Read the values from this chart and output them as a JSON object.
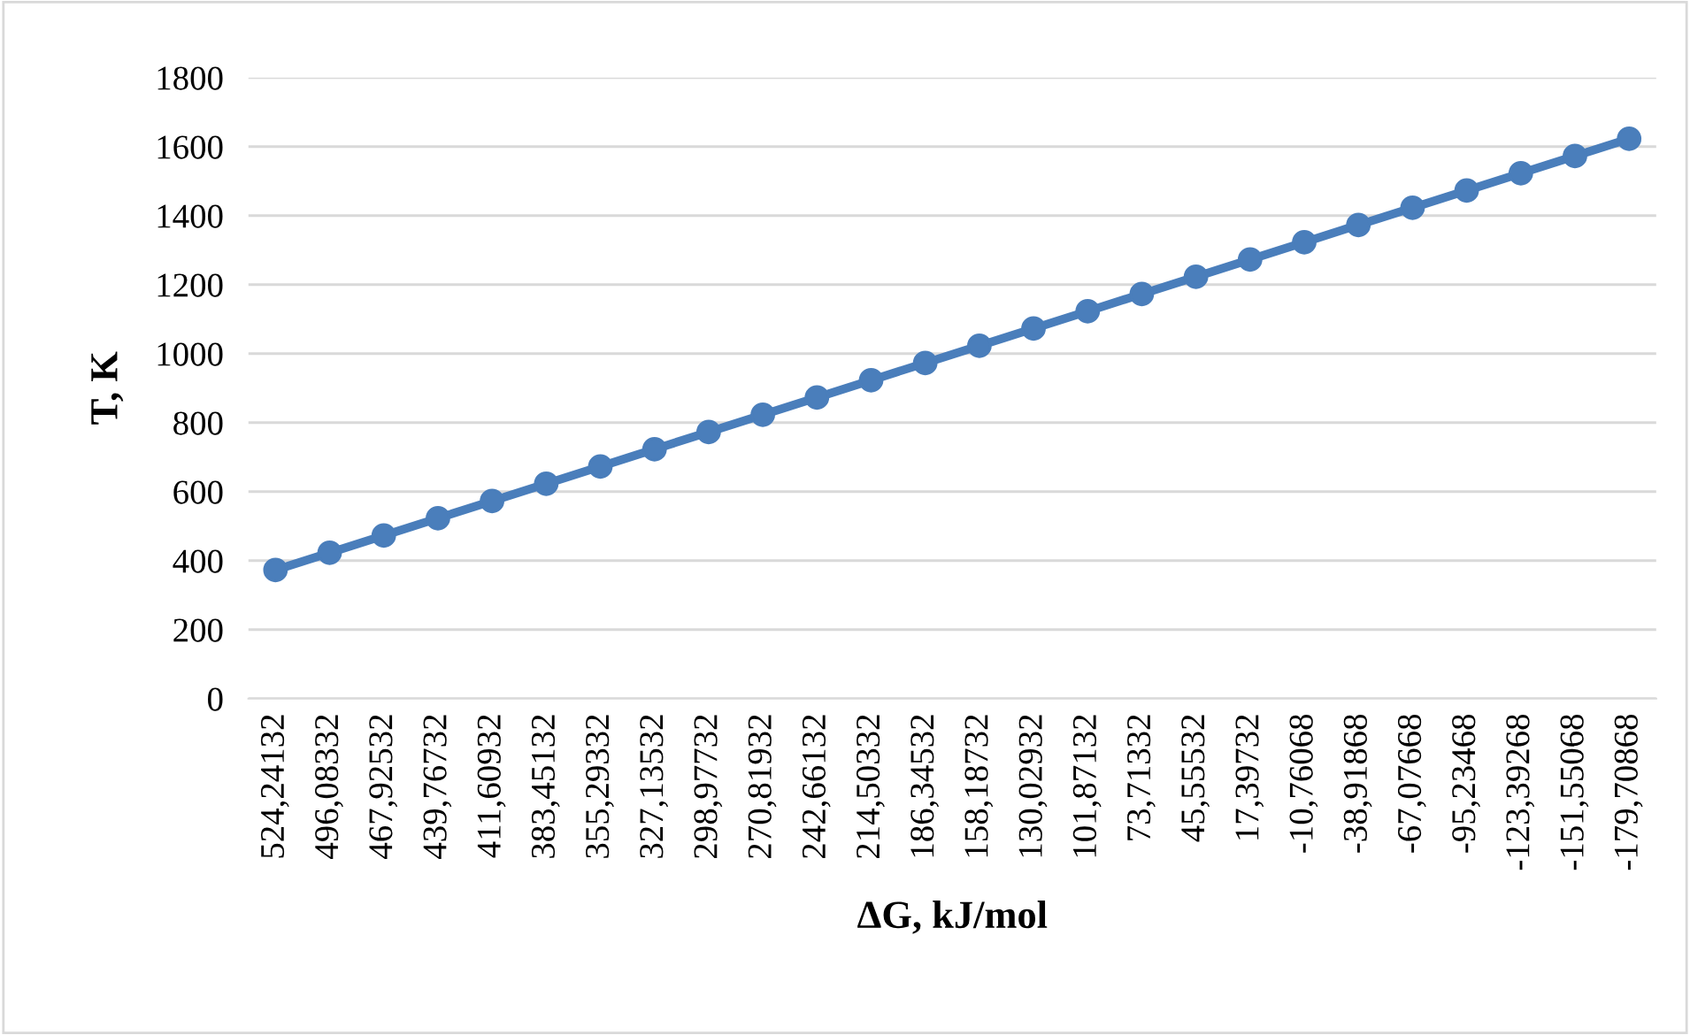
{
  "chart_data": {
    "type": "line",
    "xlabel": "ΔG, kJ/mol",
    "ylabel": "T, K",
    "categories": [
      "524,24132",
      "496,08332",
      "467,92532",
      "439,76732",
      "411,60932",
      "383,45132",
      "355,29332",
      "327,13532",
      "298,97732",
      "270,81932",
      "242,66132",
      "214,50332",
      "186,34532",
      "158,18732",
      "130,02932",
      "101,87132",
      "73,71332",
      "45,55532",
      "17,39732",
      "-10,76068",
      "-38,91868",
      "-67,07668",
      "-95,23468",
      "-123,39268",
      "-151,55068",
      "-179,70868"
    ],
    "series": [
      {
        "color": "#4a7ebb",
        "values": [
          373,
          423,
          473,
          523,
          573,
          623,
          673,
          723,
          773,
          823,
          873,
          923,
          973,
          1023,
          1073,
          1123,
          1173,
          1223,
          1273,
          1323,
          1373,
          1423,
          1473,
          1523,
          1573,
          1623
        ]
      }
    ],
    "ylim": [
      0,
      1800
    ],
    "yticks": [
      0,
      200,
      400,
      600,
      800,
      1000,
      1200,
      1400,
      1600,
      1800
    ],
    "grid": "y",
    "marker": "circle",
    "line_style": "solid"
  }
}
